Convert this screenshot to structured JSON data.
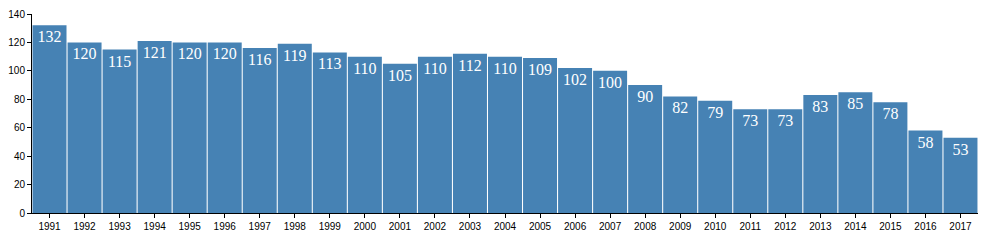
{
  "chart_data": {
    "type": "bar",
    "categories": [
      "1991",
      "1992",
      "1993",
      "1994",
      "1995",
      "1996",
      "1997",
      "1998",
      "1999",
      "2000",
      "2001",
      "2002",
      "2003",
      "2004",
      "2005",
      "2006",
      "2007",
      "2008",
      "2009",
      "2010",
      "2011",
      "2012",
      "2013",
      "2014",
      "2015",
      "2016",
      "2017"
    ],
    "values": [
      132,
      120,
      115,
      121,
      120,
      120,
      116,
      119,
      113,
      110,
      105,
      110,
      112,
      110,
      109,
      102,
      100,
      90,
      82,
      79,
      73,
      73,
      83,
      85,
      78,
      58,
      53
    ],
    "color": "#4682b4",
    "ylim": [
      0,
      140
    ],
    "yticks": [
      0,
      20,
      40,
      60,
      80,
      100,
      120,
      140
    ],
    "grid": false,
    "data_labels": true
  }
}
